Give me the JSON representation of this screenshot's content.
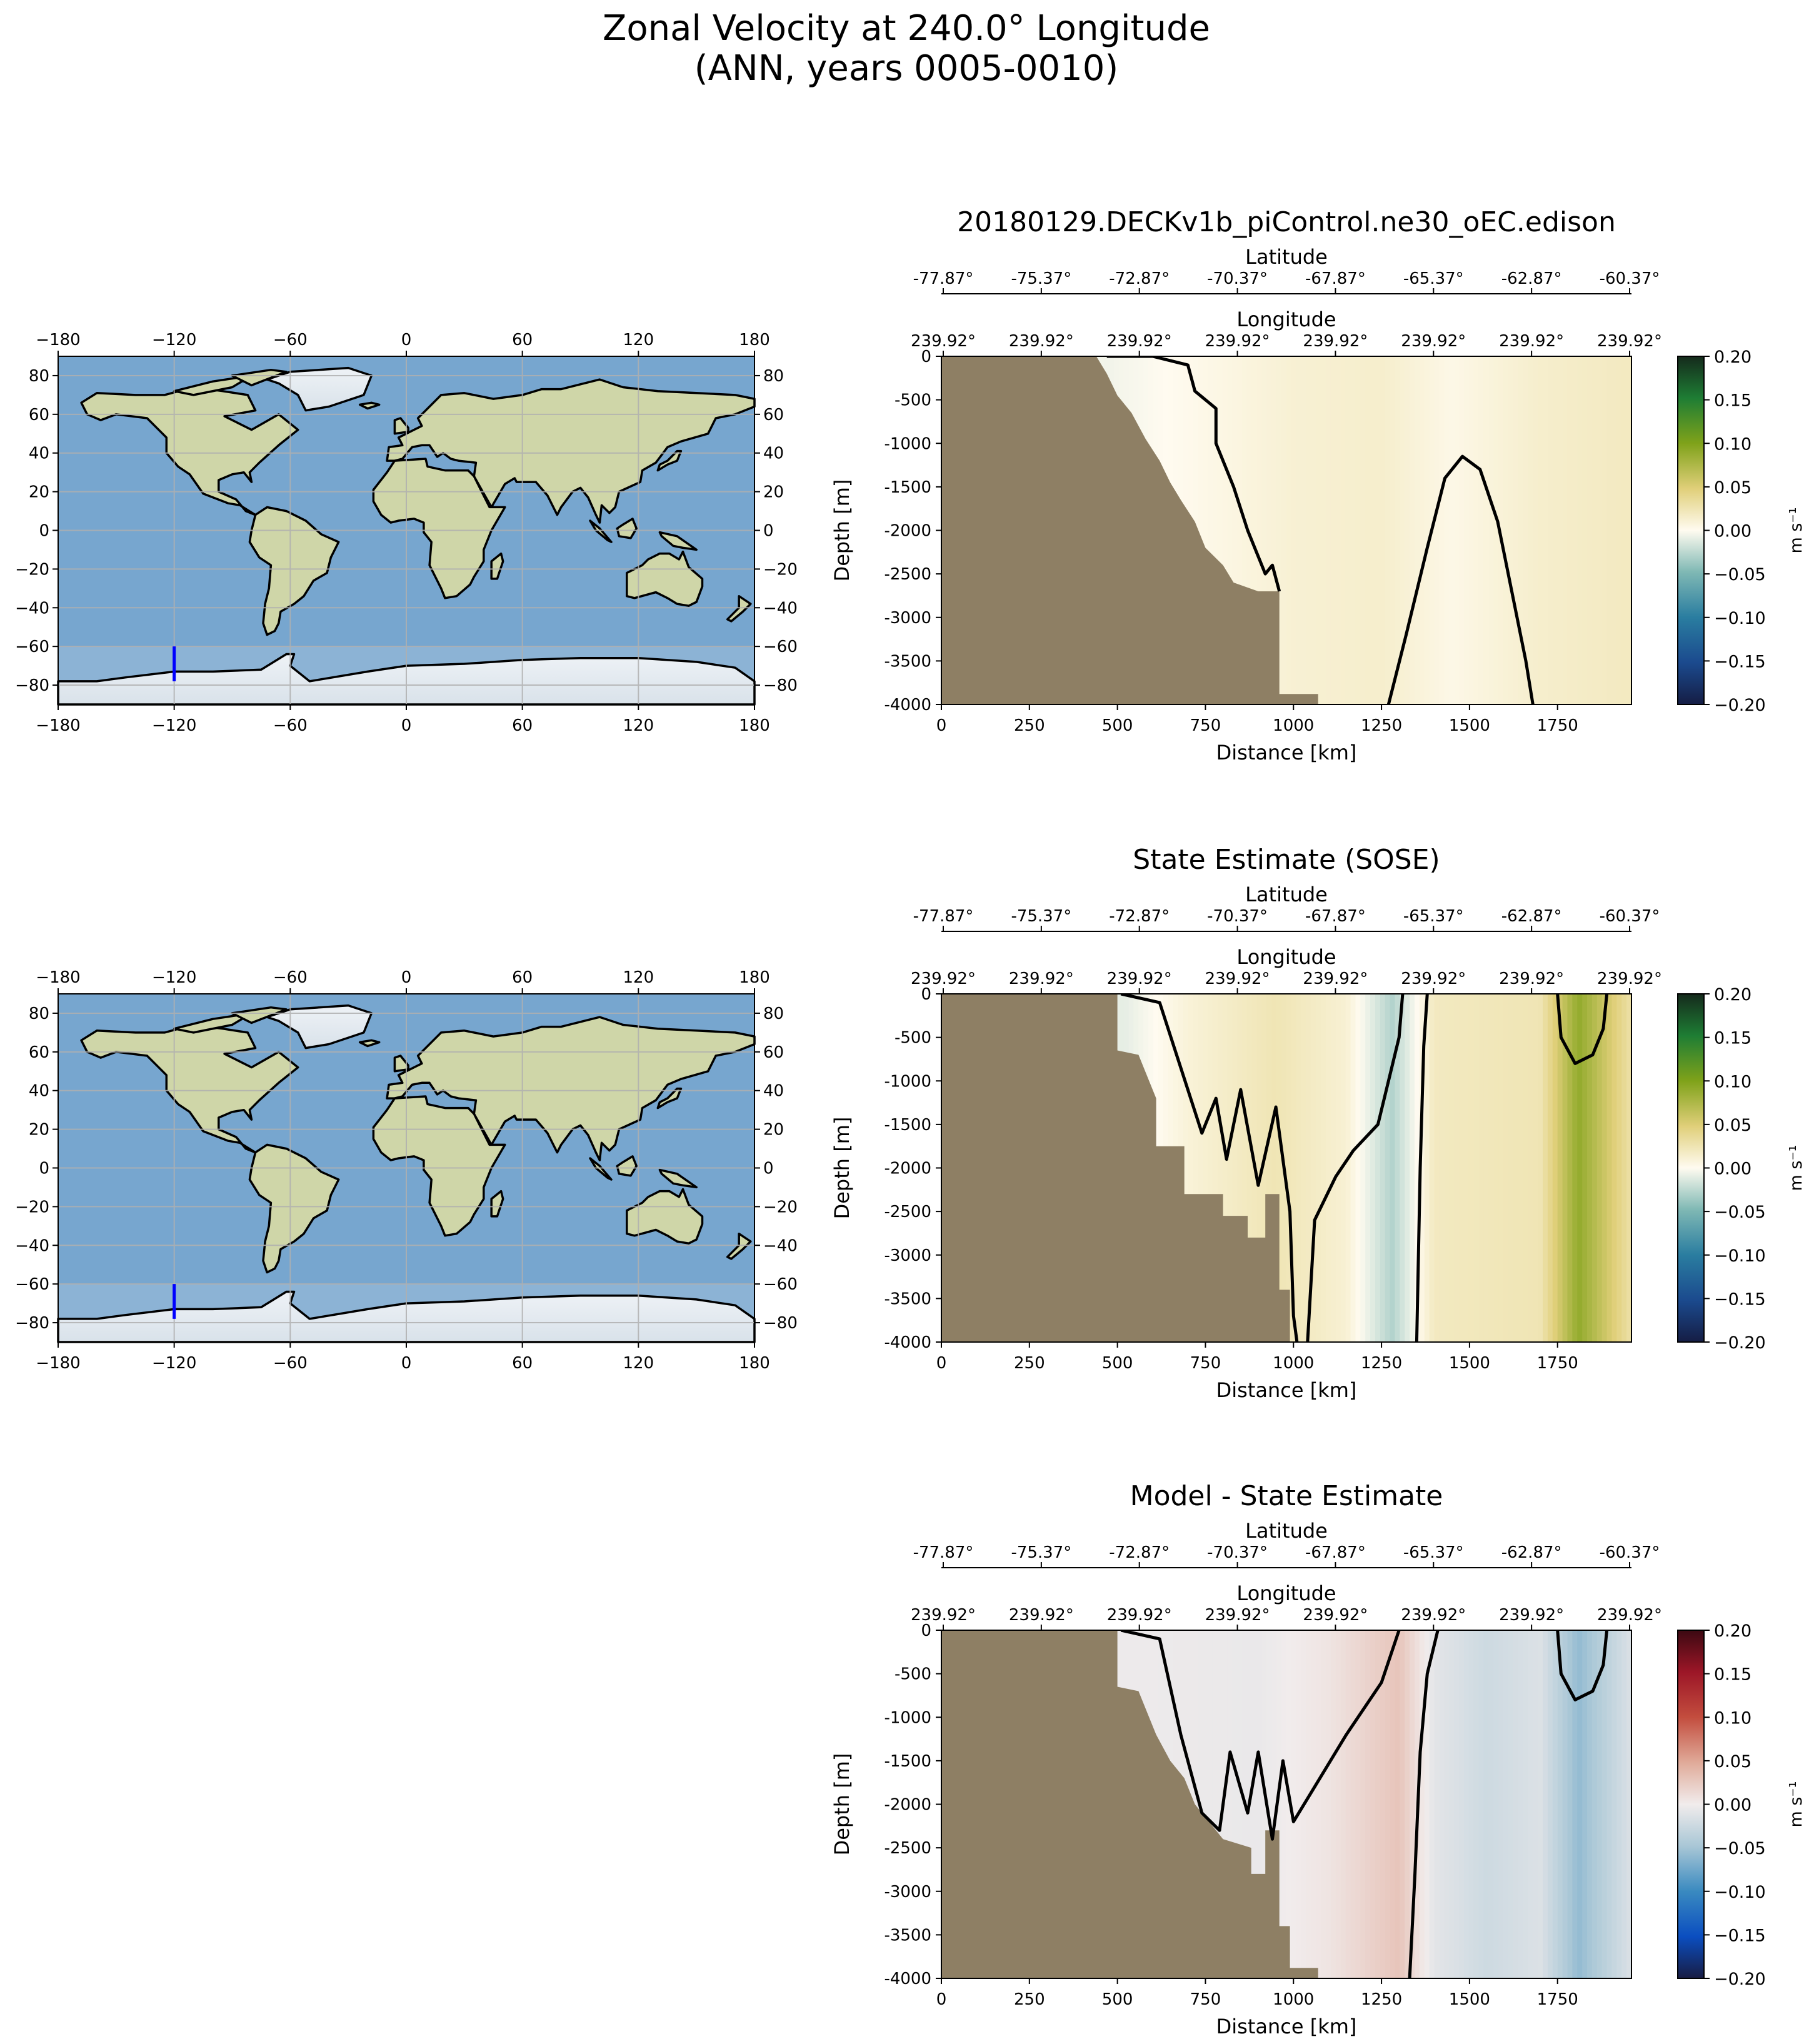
{
  "suptitle": [
    "Zonal Velocity at 240.0° Longitude",
    "(ANN, years 0005-0010)"
  ],
  "map": {
    "lon_ticks": [
      "−180",
      "−120",
      "−60",
      "0",
      "60",
      "120",
      "180"
    ],
    "lat_ticks": [
      "80",
      "60",
      "40",
      "20",
      "0",
      "−20",
      "−40",
      "−60",
      "−80"
    ],
    "transect": {
      "lon": -120,
      "lat_start": -60,
      "lat_end": -78
    }
  },
  "colors": {
    "land": "#8e7f64",
    "ocean": "#77a6cf",
    "transect": "#0000ff",
    "contour": "#000000"
  },
  "chart_data": [
    {
      "type": "heatmap",
      "title": "20180129.DECKv1b_piControl.ne30_oEC.edison",
      "xlabel": "Distance [km]",
      "ylabel": "Depth [m]",
      "top_axis_1_label": "Latitude",
      "top_axis_2_label": "Longitude",
      "latitude_ticks": [
        "-77.87°",
        "-75.37°",
        "-72.87°",
        "-70.37°",
        "-67.87°",
        "-65.37°",
        "-62.87°",
        "-60.37°"
      ],
      "longitude_ticks": [
        "239.92°",
        "239.92°",
        "239.92°",
        "239.92°",
        "239.92°",
        "239.92°",
        "239.92°",
        "239.92°"
      ],
      "xlim": [
        0,
        1960
      ],
      "ylim": [
        -4000,
        0
      ],
      "x_ticks": [
        0,
        250,
        500,
        750,
        1000,
        1250,
        1500,
        1750
      ],
      "y_ticks": [
        0,
        -500,
        -1000,
        -1500,
        -2000,
        -2500,
        -3000,
        -3500,
        -4000
      ],
      "colorbar": {
        "cmap": "ocean-velocity",
        "min": -0.2,
        "max": 0.2,
        "ticks": [
          "0.20",
          "0.15",
          "0.10",
          "0.05",
          "0.00",
          "−0.05",
          "−0.10",
          "−0.15",
          "−0.20"
        ],
        "label": "m s⁻¹"
      },
      "field_samples": [
        [
          0,
          0.0
        ],
        [
          480,
          -0.005
        ],
        [
          700,
          0.002
        ],
        [
          1000,
          0.012
        ],
        [
          1250,
          0.015
        ],
        [
          1450,
          0.004
        ],
        [
          1700,
          0.015
        ],
        [
          1960,
          0.02
        ]
      ],
      "bathymetry": [
        [
          440,
          0
        ],
        [
          470,
          -200
        ],
        [
          500,
          -450
        ],
        [
          540,
          -650
        ],
        [
          580,
          -950
        ],
        [
          620,
          -1200
        ],
        [
          650,
          -1450
        ],
        [
          680,
          -1650
        ],
        [
          720,
          -1900
        ],
        [
          750,
          -2200
        ],
        [
          800,
          -2400
        ],
        [
          830,
          -2600
        ],
        [
          900,
          -2700
        ],
        [
          960,
          -2700
        ],
        [
          960,
          -3880
        ],
        [
          1070,
          -3880
        ],
        [
          1070,
          -4000
        ]
      ],
      "zero_contours": [
        [
          [
            470,
            0
          ],
          [
            600,
            0
          ],
          [
            700,
            -100
          ],
          [
            720,
            -400
          ],
          [
            780,
            -600
          ],
          [
            780,
            -1000
          ],
          [
            830,
            -1500
          ],
          [
            870,
            -2000
          ],
          [
            890,
            -2200
          ],
          [
            920,
            -2500
          ],
          [
            940,
            -2400
          ],
          [
            960,
            -2700
          ]
        ],
        [
          [
            1270,
            -4000
          ],
          [
            1320,
            -3200
          ],
          [
            1380,
            -2200
          ],
          [
            1430,
            -1400
          ],
          [
            1480,
            -1150
          ],
          [
            1530,
            -1300
          ],
          [
            1580,
            -1900
          ],
          [
            1620,
            -2700
          ],
          [
            1660,
            -3500
          ],
          [
            1680,
            -4000
          ]
        ]
      ]
    },
    {
      "type": "heatmap",
      "title": "State Estimate (SOSE)",
      "xlabel": "Distance [km]",
      "ylabel": "Depth [m]",
      "top_axis_1_label": "Latitude",
      "top_axis_2_label": "Longitude",
      "latitude_ticks": [
        "-77.87°",
        "-75.37°",
        "-72.87°",
        "-70.37°",
        "-67.87°",
        "-65.37°",
        "-62.87°",
        "-60.37°"
      ],
      "longitude_ticks": [
        "239.92°",
        "239.92°",
        "239.92°",
        "239.92°",
        "239.92°",
        "239.92°",
        "239.92°",
        "239.92°"
      ],
      "xlim": [
        0,
        1960
      ],
      "ylim": [
        -4000,
        0
      ],
      "x_ticks": [
        0,
        250,
        500,
        750,
        1000,
        1250,
        1500,
        1750
      ],
      "y_ticks": [
        0,
        -500,
        -1000,
        -1500,
        -2000,
        -2500,
        -3000,
        -3500,
        -4000
      ],
      "colorbar": {
        "cmap": "ocean-velocity",
        "min": -0.2,
        "max": 0.2,
        "ticks": [
          "0.20",
          "0.15",
          "0.10",
          "0.05",
          "0.00",
          "−0.05",
          "−0.10",
          "−0.15",
          "−0.20"
        ],
        "label": "m s⁻¹"
      },
      "field_samples": [
        [
          0,
          0.0
        ],
        [
          520,
          -0.01
        ],
        [
          700,
          0.01
        ],
        [
          950,
          0.025
        ],
        [
          1150,
          0.012
        ],
        [
          1280,
          -0.03
        ],
        [
          1400,
          0.02
        ],
        [
          1700,
          0.025
        ],
        [
          1810,
          0.09
        ],
        [
          1960,
          0.03
        ]
      ],
      "bathymetry": [
        [
          500,
          0
        ],
        [
          500,
          -650
        ],
        [
          560,
          -700
        ],
        [
          590,
          -1000
        ],
        [
          610,
          -1200
        ],
        [
          610,
          -1750
        ],
        [
          690,
          -1750
        ],
        [
          690,
          -2300
        ],
        [
          800,
          -2300
        ],
        [
          800,
          -2550
        ],
        [
          870,
          -2550
        ],
        [
          870,
          -2800
        ],
        [
          920,
          -2800
        ],
        [
          920,
          -2300
        ],
        [
          960,
          -2300
        ],
        [
          960,
          -3400
        ],
        [
          990,
          -3400
        ],
        [
          990,
          -4000
        ]
      ],
      "zero_contours": [
        [
          [
            510,
            0
          ],
          [
            620,
            -100
          ],
          [
            700,
            -1100
          ],
          [
            740,
            -1600
          ],
          [
            780,
            -1200
          ],
          [
            810,
            -1900
          ],
          [
            850,
            -1100
          ],
          [
            900,
            -2200
          ],
          [
            950,
            -1300
          ],
          [
            990,
            -2500
          ],
          [
            1000,
            -3700
          ],
          [
            1010,
            -4000
          ]
        ],
        [
          [
            1040,
            -4000
          ],
          [
            1060,
            -2600
          ],
          [
            1120,
            -2100
          ],
          [
            1170,
            -1800
          ],
          [
            1240,
            -1500
          ],
          [
            1270,
            -1000
          ],
          [
            1300,
            -500
          ],
          [
            1310,
            0
          ]
        ],
        [
          [
            1350,
            -4000
          ],
          [
            1360,
            -2000
          ],
          [
            1370,
            -600
          ],
          [
            1380,
            0
          ]
        ],
        [
          [
            1750,
            0
          ],
          [
            1760,
            -500
          ],
          [
            1800,
            -800
          ],
          [
            1850,
            -700
          ],
          [
            1880,
            -400
          ],
          [
            1890,
            0
          ]
        ]
      ]
    },
    {
      "type": "heatmap",
      "title": "Model - State Estimate",
      "xlabel": "Distance [km]",
      "ylabel": "Depth [m]",
      "top_axis_1_label": "Latitude",
      "top_axis_2_label": "Longitude",
      "latitude_ticks": [
        "-77.87°",
        "-75.37°",
        "-72.87°",
        "-70.37°",
        "-67.87°",
        "-65.37°",
        "-62.87°",
        "-60.37°"
      ],
      "longitude_ticks": [
        "239.92°",
        "239.92°",
        "239.92°",
        "239.92°",
        "239.92°",
        "239.92°",
        "239.92°",
        "239.92°"
      ],
      "xlim": [
        0,
        1960
      ],
      "ylim": [
        -4000,
        0
      ],
      "x_ticks": [
        0,
        250,
        500,
        750,
        1000,
        1250,
        1500,
        1750
      ],
      "y_ticks": [
        0,
        -500,
        -1000,
        -1500,
        -2000,
        -2500,
        -3000,
        -3500,
        -4000
      ],
      "colorbar": {
        "cmap": "balance",
        "min": -0.2,
        "max": 0.2,
        "ticks": [
          "0.20",
          "0.15",
          "0.10",
          "0.05",
          "0.00",
          "−0.05",
          "−0.10",
          "−0.15",
          "−0.20"
        ],
        "label": "m s⁻¹"
      },
      "field_samples": [
        [
          0,
          0.0
        ],
        [
          600,
          -0.003
        ],
        [
          900,
          -0.005
        ],
        [
          1100,
          0.006
        ],
        [
          1300,
          0.03
        ],
        [
          1400,
          -0.01
        ],
        [
          1550,
          -0.025
        ],
        [
          1700,
          -0.015
        ],
        [
          1810,
          -0.06
        ],
        [
          1960,
          -0.015
        ]
      ],
      "bathymetry": [
        [
          500,
          0
        ],
        [
          500,
          -650
        ],
        [
          560,
          -700
        ],
        [
          590,
          -1000
        ],
        [
          610,
          -1200
        ],
        [
          650,
          -1500
        ],
        [
          690,
          -1700
        ],
        [
          720,
          -2000
        ],
        [
          760,
          -2200
        ],
        [
          800,
          -2400
        ],
        [
          880,
          -2500
        ],
        [
          880,
          -2800
        ],
        [
          920,
          -2800
        ],
        [
          920,
          -2300
        ],
        [
          960,
          -2300
        ],
        [
          960,
          -3400
        ],
        [
          990,
          -3400
        ],
        [
          990,
          -3880
        ],
        [
          1070,
          -3880
        ],
        [
          1070,
          -4000
        ]
      ],
      "zero_contours": [
        [
          [
            510,
            0
          ],
          [
            620,
            -100
          ],
          [
            680,
            -1200
          ],
          [
            740,
            -2100
          ],
          [
            790,
            -2300
          ],
          [
            820,
            -1400
          ],
          [
            870,
            -2100
          ],
          [
            900,
            -1400
          ],
          [
            940,
            -2400
          ],
          [
            970,
            -1500
          ],
          [
            1000,
            -2200
          ],
          [
            1060,
            -1800
          ],
          [
            1150,
            -1200
          ],
          [
            1250,
            -600
          ],
          [
            1300,
            0
          ]
        ],
        [
          [
            1330,
            -4000
          ],
          [
            1345,
            -2800
          ],
          [
            1360,
            -1400
          ],
          [
            1380,
            -500
          ],
          [
            1410,
            0
          ]
        ],
        [
          [
            1750,
            0
          ],
          [
            1760,
            -500
          ],
          [
            1800,
            -800
          ],
          [
            1850,
            -700
          ],
          [
            1880,
            -400
          ],
          [
            1890,
            0
          ]
        ]
      ]
    }
  ]
}
